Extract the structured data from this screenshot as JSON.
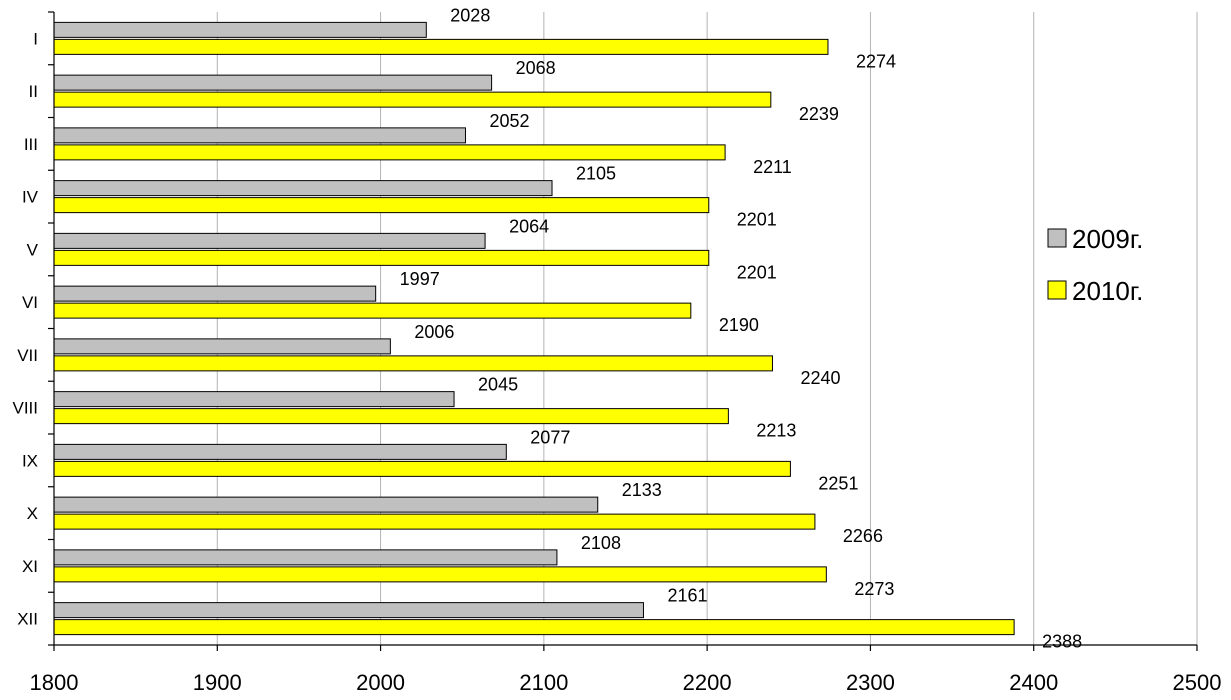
{
  "chart_data": {
    "type": "bar",
    "orientation": "horizontal",
    "categories": [
      "I",
      "II",
      "III",
      "IV",
      "V",
      "VI",
      "VII",
      "VIII",
      "IX",
      "X",
      "XI",
      "XII"
    ],
    "series": [
      {
        "name": "2009г.",
        "color": "#c0c0c0",
        "values": [
          2028,
          2068,
          2052,
          2105,
          2064,
          1997,
          2006,
          2045,
          2077,
          2133,
          2108,
          2161
        ]
      },
      {
        "name": "2010г.",
        "color": "#ffff00",
        "values": [
          2274,
          2239,
          2211,
          2201,
          2201,
          2190,
          2240,
          2213,
          2251,
          2266,
          2273,
          2388
        ]
      }
    ],
    "xlim": [
      1800,
      2500
    ],
    "xticks": [
      "1800",
      "1900",
      "2000",
      "2100",
      "2200",
      "2300",
      "2400",
      "2500"
    ],
    "grid": true,
    "legend_position": "right"
  }
}
